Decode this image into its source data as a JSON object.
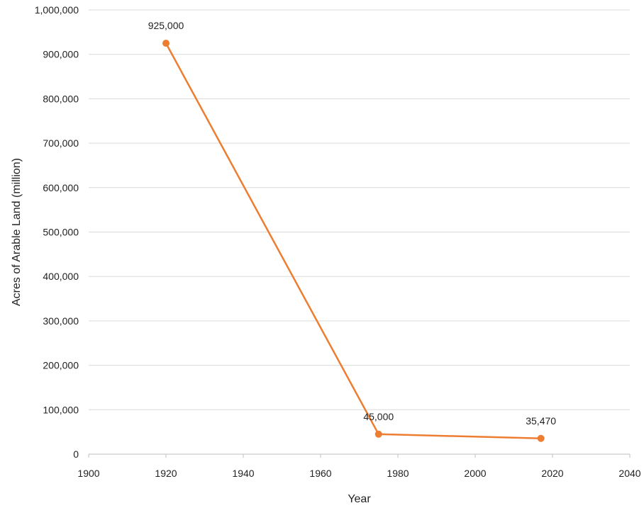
{
  "chart_data": {
    "type": "line",
    "title": "",
    "xlabel": "Year",
    "ylabel": "Acres of Arable Land (million)",
    "xlim": [
      1900,
      2040
    ],
    "ylim": [
      0,
      1000000
    ],
    "x_ticks": [
      {
        "value": 1900,
        "label": "1900"
      },
      {
        "value": 1920,
        "label": "1920"
      },
      {
        "value": 1940,
        "label": "1940"
      },
      {
        "value": 1960,
        "label": "1960"
      },
      {
        "value": 1980,
        "label": "1980"
      },
      {
        "value": 2000,
        "label": "2000"
      },
      {
        "value": 2020,
        "label": "2020"
      },
      {
        "value": 2040,
        "label": "2040"
      }
    ],
    "y_ticks": [
      {
        "value": 0,
        "label": "0"
      },
      {
        "value": 100000,
        "label": "100,000"
      },
      {
        "value": 200000,
        "label": "200,000"
      },
      {
        "value": 300000,
        "label": "300,000"
      },
      {
        "value": 400000,
        "label": "400,000"
      },
      {
        "value": 500000,
        "label": "500,000"
      },
      {
        "value": 600000,
        "label": "600,000"
      },
      {
        "value": 700000,
        "label": "700,000"
      },
      {
        "value": 800000,
        "label": "800,000"
      },
      {
        "value": 900000,
        "label": "900,000"
      },
      {
        "value": 1000000,
        "label": "1,000,000"
      }
    ],
    "grid": "horizontal",
    "legend": "none",
    "series": [
      {
        "color": "#ED7D31",
        "points": [
          {
            "x": 1920,
            "y": 925000,
            "label": "925,000"
          },
          {
            "x": 1975,
            "y": 45000,
            "label": "45,000"
          },
          {
            "x": 2017,
            "y": 35470,
            "label": "35,470"
          }
        ]
      }
    ]
  }
}
